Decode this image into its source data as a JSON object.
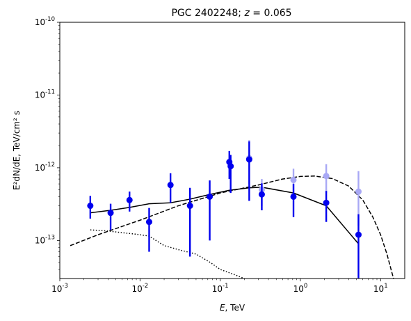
{
  "chart_data": {
    "type": "scatter",
    "title_main": "PGC 2402248; ",
    "title_z": "z",
    "title_eq": " = 0.065",
    "xlabel_var": "E",
    "xlabel_unit": ", TeV",
    "ylabel_text": "E²dN/dE, TeV/cm² s",
    "x_scale": "log",
    "y_scale": "log",
    "xlim": [
      0.001,
      20
    ],
    "ylim": [
      3e-14,
      1e-10
    ],
    "grid": false,
    "x_ticks": [
      {
        "exp": "-3",
        "value": 0.001
      },
      {
        "exp": "-2",
        "value": 0.01
      },
      {
        "exp": "-1",
        "value": 0.1
      },
      {
        "exp": "0",
        "value": 1
      },
      {
        "exp": "1",
        "value": 10
      }
    ],
    "y_ticks": [
      {
        "exp": "-13",
        "value": 1e-13
      },
      {
        "exp": "-12",
        "value": 1e-12
      },
      {
        "exp": "-11",
        "value": 1e-11
      },
      {
        "exp": "-10",
        "value": 1e-10
      }
    ],
    "tick_base": "10",
    "colors": {
      "points": "#0000ee",
      "points_faded": "#a8a8f5",
      "lines": "#000000"
    },
    "series": [
      {
        "style": "points",
        "points": [
          {
            "x": 0.0024,
            "y": 3e-13,
            "lo": 2e-13,
            "hi": 4.1e-13
          },
          {
            "x": 0.0043,
            "y": 2.4e-13,
            "lo": 1.4e-13,
            "hi": 3.2e-13
          },
          {
            "x": 0.0074,
            "y": 3.6e-13,
            "lo": 2.5e-13,
            "hi": 4.7e-13
          },
          {
            "x": 0.013,
            "y": 1.8e-13,
            "lo": 7e-14,
            "hi": 2.8e-13
          },
          {
            "x": 0.024,
            "y": 5.8e-13,
            "lo": 3.3e-13,
            "hi": 8.4e-13
          },
          {
            "x": 0.042,
            "y": 3e-13,
            "lo": 6e-14,
            "hi": 5.3e-13
          },
          {
            "x": 0.074,
            "y": 4e-13,
            "lo": 1e-13,
            "hi": 6.7e-13
          },
          {
            "x": 0.13,
            "y": 1.2e-12,
            "lo": 7e-13,
            "hi": 1.7e-12
          },
          {
            "x": 0.135,
            "y": 1.05e-12,
            "lo": 4.5e-13,
            "hi": 1.5e-12
          },
          {
            "x": 0.23,
            "y": 1.3e-12,
            "lo": 3.5e-13,
            "hi": 2.3e-12
          },
          {
            "x": 0.33,
            "y": 4.3e-13,
            "lo": 2.6e-13,
            "hi": 6.1e-13
          },
          {
            "x": 0.82,
            "y": 4e-13,
            "lo": 2.1e-13,
            "hi": 6e-13
          },
          {
            "x": 2.1,
            "y": 3.3e-13,
            "lo": 1.8e-13,
            "hi": 4.8e-13
          },
          {
            "x": 5.3,
            "y": 1.2e-13,
            "lo": 2e-14,
            "hi": 2.3e-13
          }
        ]
      },
      {
        "style": "points-faded",
        "points": [
          {
            "x": 0.23,
            "y": 1.35e-12,
            "lo": 6e-13,
            "hi": 2.4e-12
          },
          {
            "x": 0.33,
            "y": 5e-13,
            "lo": 3e-13,
            "hi": 7e-13
          },
          {
            "x": 0.82,
            "y": 6.8e-13,
            "lo": 4.4e-13,
            "hi": 9.7e-13
          },
          {
            "x": 2.1,
            "y": 7.7e-13,
            "lo": 4.5e-13,
            "hi": 1.12e-12
          },
          {
            "x": 5.3,
            "y": 4.7e-13,
            "lo": 1.6e-13,
            "hi": 9e-13
          }
        ]
      },
      {
        "style": "solid",
        "x": [
          0.0024,
          0.0043,
          0.0074,
          0.013,
          0.024,
          0.042,
          0.074,
          0.13,
          0.23,
          0.33,
          0.82,
          2.1,
          5.3
        ],
        "y": [
          2.4e-13,
          2.6e-13,
          2.85e-13,
          3.2e-13,
          3.3e-13,
          3.7e-13,
          4.3e-13,
          4.9e-13,
          5.3e-13,
          5.4e-13,
          4.5e-13,
          3e-13,
          9e-14
        ]
      },
      {
        "style": "dashed",
        "x": [
          0.00135,
          0.003,
          0.01,
          0.03,
          0.1,
          0.3,
          0.6,
          1.0,
          1.5,
          2.5,
          4.0,
          6.0,
          8.0,
          10.0,
          12.0,
          13.5,
          14.5
        ],
        "y": [
          8.5e-14,
          1.2e-13,
          1.9e-13,
          3e-13,
          4.5e-13,
          5.8e-13,
          7e-13,
          7.6e-13,
          7.7e-13,
          7.1e-13,
          5.6e-13,
          3.6e-13,
          2.1e-13,
          1.2e-13,
          6.5e-14,
          4e-14,
          3e-14
        ]
      },
      {
        "style": "dotted",
        "x": [
          0.0024,
          0.004,
          0.006,
          0.009,
          0.013,
          0.02,
          0.03,
          0.05,
          0.075,
          0.1,
          0.15,
          0.2
        ],
        "y": [
          1.4e-13,
          1.35e-13,
          1.28e-13,
          1.22e-13,
          1.15e-13,
          8.5e-14,
          7.5e-14,
          6.5e-14,
          5e-14,
          4e-14,
          3.4e-14,
          3e-14
        ]
      }
    ]
  }
}
